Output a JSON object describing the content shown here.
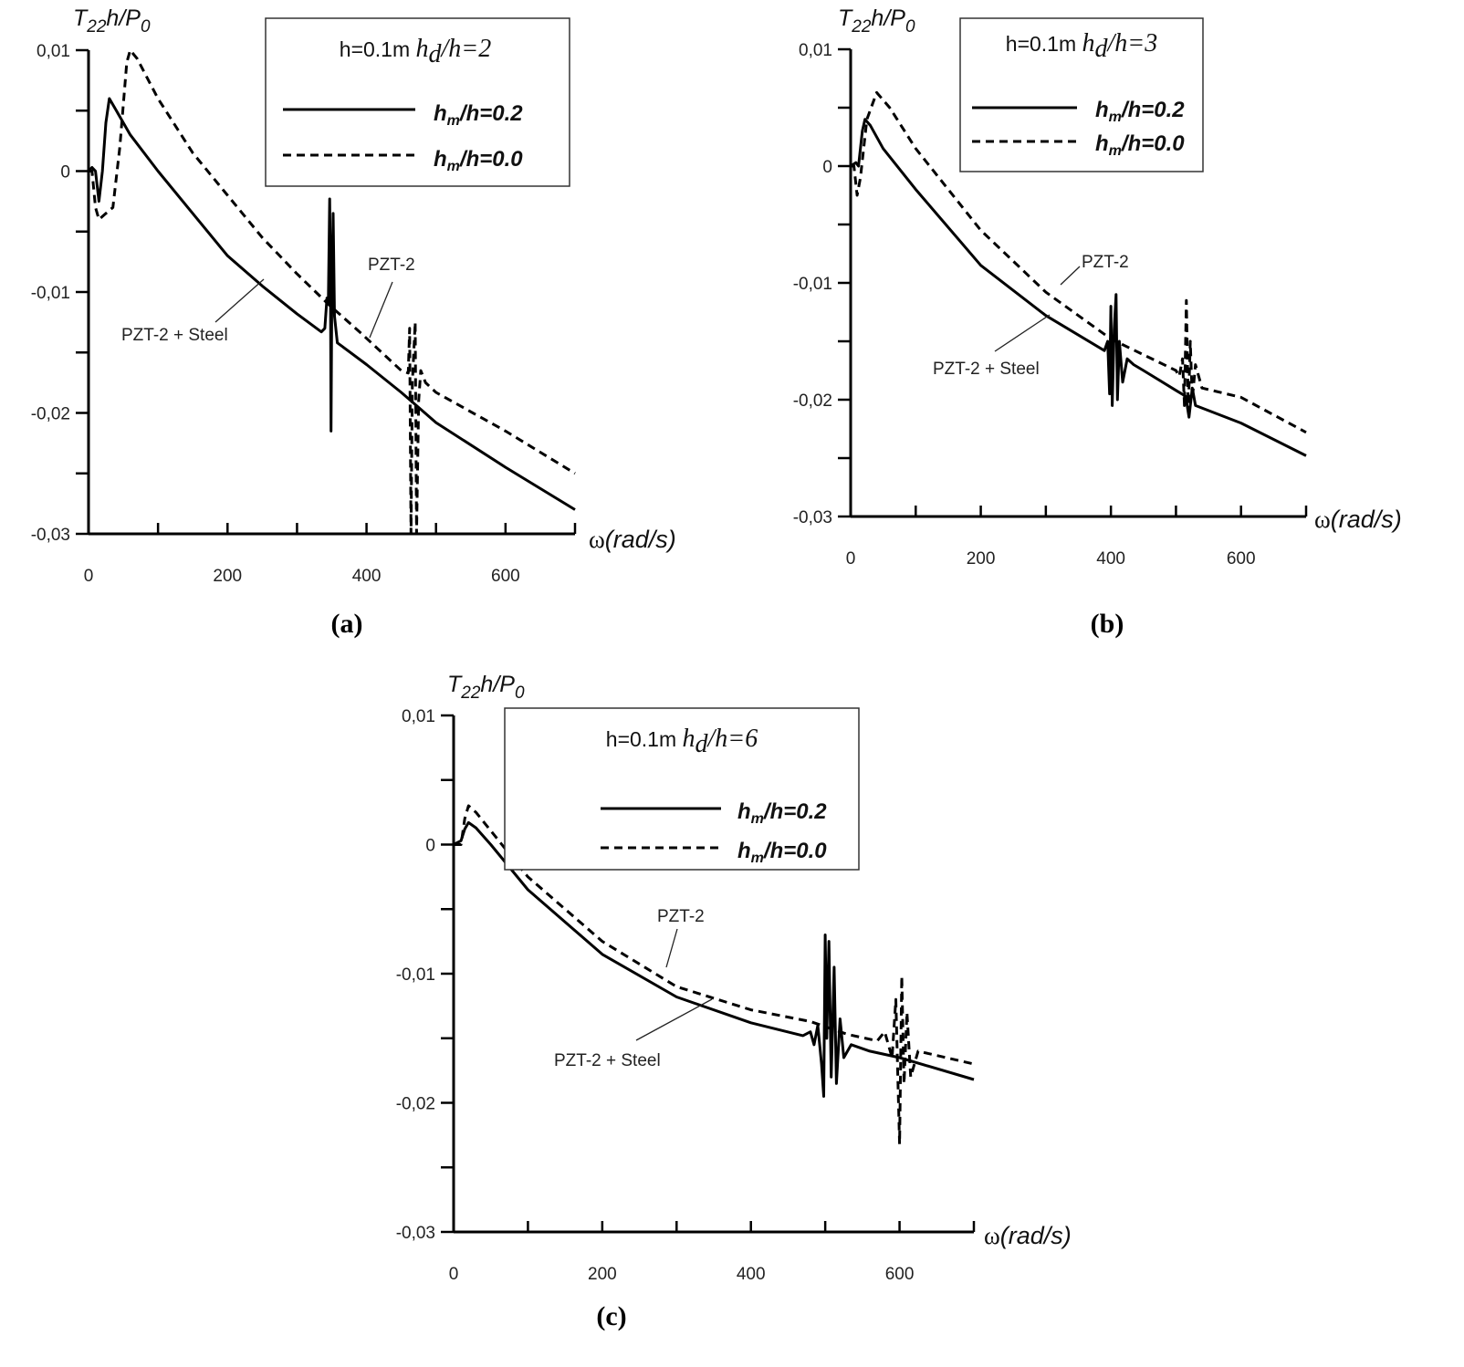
{
  "chart_data": [
    {
      "type": "line",
      "panel_label": "(a)",
      "ylabel": {
        "main": "T",
        "sub": "22",
        "mid": "h/P",
        "sub2": "0"
      },
      "xlabel": {
        "symbol": "ω",
        "units": "(rad/s)"
      },
      "xlim": [
        0,
        700
      ],
      "ylim": [
        -0.03,
        0.01
      ],
      "x_ticks": [
        "0",
        "200",
        "400",
        "600"
      ],
      "x_tick_values": [
        0,
        200,
        400,
        600
      ],
      "y_ticks": [
        "0,01",
        "0",
        "-0,01",
        "-0,02",
        "-0,03"
      ],
      "y_tick_values": [
        0.01,
        0,
        -0.01,
        -0.02,
        -0.03
      ],
      "grid": false,
      "legend": {
        "position": "top-right",
        "title": {
          "plain": "h=0.1m ",
          "var": "h",
          "sub": "d",
          "rest": "/h=2"
        }
      },
      "annotations": [
        "PZT-2",
        "PZT-2 + Steel"
      ],
      "series": [
        {
          "name": {
            "var": "h",
            "sub": "m",
            "rest": "/h=0.2"
          },
          "style": "solid",
          "points": [
            [
              0,
              0
            ],
            [
              5,
              0.0003
            ],
            [
              10,
              0
            ],
            [
              15,
              -0.0025
            ],
            [
              20,
              0
            ],
            [
              25,
              0.004
            ],
            [
              30,
              0.006
            ],
            [
              40,
              0.005
            ],
            [
              60,
              0.003
            ],
            [
              100,
              0
            ],
            [
              150,
              -0.0035
            ],
            [
              200,
              -0.007
            ],
            [
              250,
              -0.0095
            ],
            [
              300,
              -0.0118
            ],
            [
              335,
              -0.0133
            ],
            [
              340,
              -0.013
            ],
            [
              343,
              -0.0105
            ],
            [
              345,
              -0.011
            ],
            [
              347,
              -0.0023
            ],
            [
              348,
              -0.008
            ],
            [
              349,
              -0.0215
            ],
            [
              350,
              -0.011
            ],
            [
              352,
              -0.0035
            ],
            [
              354,
              -0.012
            ],
            [
              358,
              -0.0142
            ],
            [
              365,
              -0.0145
            ],
            [
              400,
              -0.016
            ],
            [
              450,
              -0.0183
            ],
            [
              470,
              -0.0193
            ],
            [
              500,
              -0.0208
            ],
            [
              600,
              -0.0245
            ],
            [
              700,
              -0.028
            ]
          ]
        },
        {
          "name": {
            "var": "h",
            "sub": "m",
            "rest": "/h=0.0"
          },
          "style": "dashed",
          "points": [
            [
              0,
              0
            ],
            [
              5,
              0
            ],
            [
              10,
              -0.003
            ],
            [
              15,
              -0.004
            ],
            [
              25,
              -0.0035
            ],
            [
              35,
              -0.003
            ],
            [
              45,
              0.002
            ],
            [
              55,
              0.009
            ],
            [
              60,
              0.01
            ],
            [
              70,
              0.0093
            ],
            [
              100,
              0.006
            ],
            [
              150,
              0.0015
            ],
            [
              200,
              -0.002
            ],
            [
              250,
              -0.0055
            ],
            [
              300,
              -0.0085
            ],
            [
              345,
              -0.011
            ],
            [
              390,
              -0.0133
            ],
            [
              450,
              -0.0165
            ],
            [
              460,
              -0.0167
            ],
            [
              462,
              -0.013
            ],
            [
              464,
              -0.03
            ],
            [
              466,
              -0.0175
            ],
            [
              470,
              -0.0125
            ],
            [
              472,
              -0.03
            ],
            [
              475,
              -0.019
            ],
            [
              478,
              -0.0165
            ],
            [
              485,
              -0.0175
            ],
            [
              500,
              -0.0183
            ],
            [
              600,
              -0.0215
            ],
            [
              700,
              -0.025
            ]
          ]
        }
      ]
    },
    {
      "type": "line",
      "panel_label": "(b)",
      "ylabel": {
        "main": "T",
        "sub": "22",
        "mid": "h/P",
        "sub2": "0"
      },
      "xlabel": {
        "symbol": "ω",
        "units": "(rad/s)"
      },
      "xlim": [
        0,
        700
      ],
      "ylim": [
        -0.03,
        0.01
      ],
      "x_ticks": [
        "0",
        "200",
        "400",
        "600"
      ],
      "x_tick_values": [
        0,
        200,
        400,
        600
      ],
      "y_ticks": [
        "0,01",
        "0",
        "-0,01",
        "-0,02",
        "-0,03"
      ],
      "y_tick_values": [
        0.01,
        0,
        -0.01,
        -0.02,
        -0.03
      ],
      "grid": false,
      "legend": {
        "position": "top-right",
        "title": {
          "plain": "h=0.1m ",
          "var": "h",
          "sub": "d",
          "rest": "/h=3"
        }
      },
      "annotations": [
        "PZT-2",
        "PZT-2 + Steel"
      ],
      "series": [
        {
          "name": {
            "var": "h",
            "sub": "m",
            "rest": "/h=0.2"
          },
          "style": "solid",
          "points": [
            [
              0,
              0
            ],
            [
              8,
              0.0003
            ],
            [
              12,
              0
            ],
            [
              18,
              0.003
            ],
            [
              22,
              0.004
            ],
            [
              30,
              0.0035
            ],
            [
              50,
              0.0015
            ],
            [
              100,
              -0.002
            ],
            [
              200,
              -0.0085
            ],
            [
              300,
              -0.0128
            ],
            [
              390,
              -0.0158
            ],
            [
              395,
              -0.015
            ],
            [
              398,
              -0.0195
            ],
            [
              400,
              -0.012
            ],
            [
              402,
              -0.0205
            ],
            [
              405,
              -0.014
            ],
            [
              408,
              -0.011
            ],
            [
              410,
              -0.02
            ],
            [
              413,
              -0.015
            ],
            [
              418,
              -0.0185
            ],
            [
              425,
              -0.0165
            ],
            [
              435,
              -0.017
            ],
            [
              450,
              -0.0175
            ],
            [
              500,
              -0.0192
            ],
            [
              515,
              -0.0197
            ],
            [
              520,
              -0.0215
            ],
            [
              525,
              -0.019
            ],
            [
              530,
              -0.0205
            ],
            [
              600,
              -0.022
            ],
            [
              700,
              -0.0248
            ]
          ]
        },
        {
          "name": {
            "var": "h",
            "sub": "m",
            "rest": "/h=0.0"
          },
          "style": "dashed",
          "points": [
            [
              0,
              0
            ],
            [
              5,
              0
            ],
            [
              10,
              -0.0025
            ],
            [
              15,
              -0.001
            ],
            [
              25,
              0.004
            ],
            [
              40,
              0.0063
            ],
            [
              60,
              0.005
            ],
            [
              100,
              0.0015
            ],
            [
              200,
              -0.0055
            ],
            [
              300,
              -0.0108
            ],
            [
              400,
              -0.0148
            ],
            [
              500,
              -0.0175
            ],
            [
              505,
              -0.018
            ],
            [
              510,
              -0.0165
            ],
            [
              513,
              -0.0205
            ],
            [
              516,
              -0.0115
            ],
            [
              519,
              -0.021
            ],
            [
              522,
              -0.015
            ],
            [
              525,
              -0.02
            ],
            [
              530,
              -0.017
            ],
            [
              540,
              -0.019
            ],
            [
              600,
              -0.0198
            ],
            [
              700,
              -0.0228
            ]
          ]
        }
      ]
    },
    {
      "type": "line",
      "panel_label": "(c)",
      "ylabel": {
        "main": "T",
        "sub": "22",
        "mid": "h/P",
        "sub2": "0"
      },
      "xlabel": {
        "symbol": "ω",
        "units": "(rad/s)"
      },
      "xlim": [
        0,
        700
      ],
      "ylim": [
        -0.03,
        0.01
      ],
      "x_ticks": [
        "0",
        "200",
        "400",
        "600"
      ],
      "x_tick_values": [
        0,
        200,
        400,
        600
      ],
      "y_ticks": [
        "0,01",
        "0",
        "-0,01",
        "-0,02",
        "-0,03"
      ],
      "y_tick_values": [
        0.01,
        0,
        -0.01,
        -0.02,
        -0.03
      ],
      "grid": false,
      "legend": {
        "position": "top-right",
        "title": {
          "plain": "h=0.1m ",
          "var": "h",
          "sub": "d",
          "rest": "/h=6"
        }
      },
      "annotations": [
        "PZT-2",
        "PZT-2 + Steel"
      ],
      "series": [
        {
          "name": {
            "var": "h",
            "sub": "m",
            "rest": "/h=0.2"
          },
          "style": "solid",
          "points": [
            [
              0,
              0
            ],
            [
              10,
              0.0003
            ],
            [
              15,
              0.0012
            ],
            [
              20,
              0.0017
            ],
            [
              30,
              0.0013
            ],
            [
              50,
              0
            ],
            [
              100,
              -0.0035
            ],
            [
              200,
              -0.0085
            ],
            [
              300,
              -0.0118
            ],
            [
              400,
              -0.0138
            ],
            [
              470,
              -0.0148
            ],
            [
              480,
              -0.0145
            ],
            [
              485,
              -0.0155
            ],
            [
              490,
              -0.014
            ],
            [
              495,
              -0.017
            ],
            [
              498,
              -0.0195
            ],
            [
              500,
              -0.007
            ],
            [
              502,
              -0.015
            ],
            [
              505,
              -0.0075
            ],
            [
              508,
              -0.018
            ],
            [
              512,
              -0.0095
            ],
            [
              515,
              -0.0185
            ],
            [
              520,
              -0.0135
            ],
            [
              525,
              -0.0165
            ],
            [
              535,
              -0.0155
            ],
            [
              560,
              -0.016
            ],
            [
              600,
              -0.0165
            ],
            [
              700,
              -0.0182
            ]
          ]
        },
        {
          "name": {
            "var": "h",
            "sub": "m",
            "rest": "/h=0.0"
          },
          "style": "dashed",
          "points": [
            [
              0,
              0
            ],
            [
              10,
              0
            ],
            [
              15,
              0.002
            ],
            [
              20,
              0.003
            ],
            [
              30,
              0.0025
            ],
            [
              100,
              -0.0025
            ],
            [
              200,
              -0.0075
            ],
            [
              300,
              -0.011
            ],
            [
              400,
              -0.0128
            ],
            [
              480,
              -0.0137
            ],
            [
              530,
              -0.0147
            ],
            [
              570,
              -0.0152
            ],
            [
              580,
              -0.0145
            ],
            [
              590,
              -0.0165
            ],
            [
              595,
              -0.012
            ],
            [
              600,
              -0.0232
            ],
            [
              603,
              -0.0102
            ],
            [
              606,
              -0.0185
            ],
            [
              610,
              -0.013
            ],
            [
              615,
              -0.018
            ],
            [
              625,
              -0.016
            ],
            [
              700,
              -0.017
            ]
          ]
        }
      ]
    }
  ]
}
